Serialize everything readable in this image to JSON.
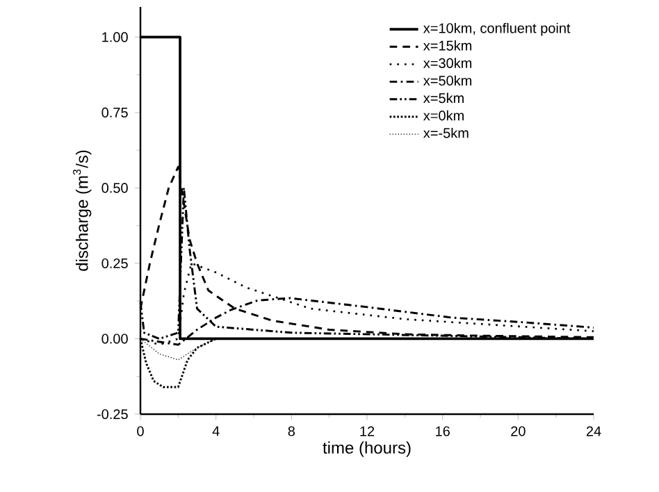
{
  "chart_data": {
    "type": "line",
    "xlabel": "time (hours)",
    "ylabel": "discharge (m$^{3}$/s)",
    "xlim": [
      0,
      24
    ],
    "ylim": [
      -0.25,
      1.1
    ],
    "xticks": [
      0,
      4,
      8,
      12,
      16,
      20,
      24
    ],
    "yticks": [
      {
        "value": -0.25,
        "label": "-0.25"
      },
      {
        "value": 0,
        "label": "0.00"
      },
      {
        "value": 0.25,
        "label": "0.25"
      },
      {
        "value": 0.5,
        "label": "0.50"
      },
      {
        "value": 0.75,
        "label": "0.75"
      },
      {
        "value": 1,
        "label": "1.00"
      }
    ],
    "grid": false,
    "legend": "top right",
    "marker": "none",
    "series": [
      {
        "name": "x=10km, confluent point",
        "color": "#000000",
        "line_style": "solid",
        "x": [
          0,
          2.1,
          2.1,
          24
        ],
        "values": [
          1,
          1,
          0,
          0
        ]
      },
      {
        "name": "x=15km",
        "color": "#000000",
        "line_style": "dashed",
        "x": [
          0,
          0.5,
          1,
          1.5,
          2,
          2.3,
          2.6,
          3,
          3.6,
          5,
          7,
          10,
          14,
          18,
          24
        ],
        "values": [
          0.1,
          0.25,
          0.38,
          0.5,
          0.57,
          0.45,
          0.33,
          0.25,
          0.16,
          0.1,
          0.06,
          0.03,
          0.015,
          0.01,
          0.005
        ]
      },
      {
        "name": "x=30km",
        "color": "#000000",
        "line_style": "dotted",
        "x": [
          0,
          1,
          2,
          2.3,
          2.7,
          4,
          5.6,
          9,
          14,
          24
        ],
        "values": [
          0,
          -0.02,
          0,
          0.15,
          0.25,
          0.22,
          0.17,
          0.1,
          0.065,
          0.025
        ]
      },
      {
        "name": "x=50km",
        "color": "#000000",
        "line_style": "dashdot",
        "x": [
          0,
          2,
          3,
          4,
          4.8,
          6.2,
          7.9,
          12,
          16.5,
          20.2,
          24
        ],
        "values": [
          0,
          -0.02,
          0.03,
          0.07,
          0.096,
          0.127,
          0.135,
          0.105,
          0.07,
          0.055,
          0.037
        ]
      },
      {
        "name": "x=5km",
        "color": "#000000",
        "line_style": "dashdotdot",
        "x": [
          0,
          0.2,
          1,
          2,
          2.3,
          2.6,
          3,
          4,
          8,
          24
        ],
        "values": [
          0.12,
          0.02,
          0,
          0.02,
          0.5,
          0.3,
          0.1,
          0.04,
          0.02,
          0
        ]
      },
      {
        "name": "x=0km",
        "color": "#000000",
        "line_style": "densely dotted",
        "x": [
          0,
          0.3,
          0.7,
          1.2,
          2,
          2.5,
          3,
          4,
          24
        ],
        "values": [
          0,
          -0.08,
          -0.14,
          -0.16,
          -0.16,
          -0.07,
          -0.03,
          0,
          0
        ]
      },
      {
        "name": "x=-5km",
        "color": "#000000",
        "line_style": "loosely dotted",
        "x": [
          0,
          1,
          2,
          3,
          4,
          24
        ],
        "values": [
          0,
          -0.05,
          -0.07,
          -0.03,
          0,
          0
        ]
      }
    ]
  }
}
